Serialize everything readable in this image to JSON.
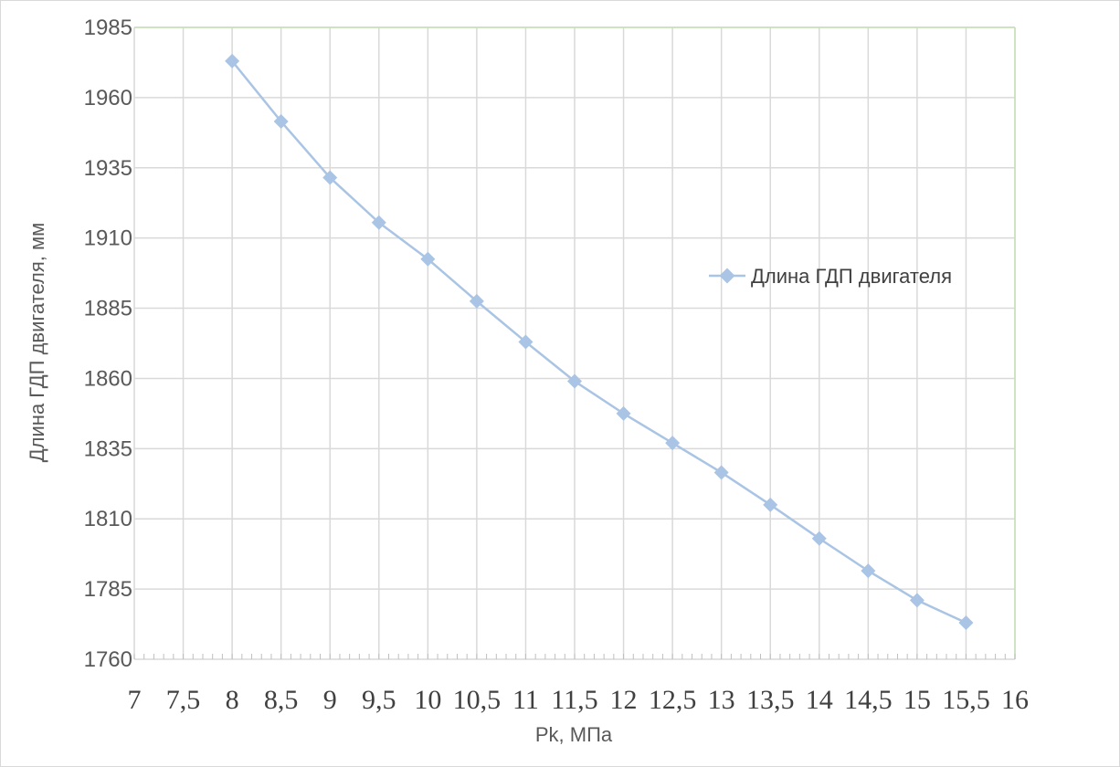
{
  "chart_data": {
    "type": "line",
    "title": "",
    "xlabel": "Pk, МПа",
    "ylabel": "Длина ГДП двигателя, мм",
    "xlim": [
      7,
      16
    ],
    "ylim": [
      1760,
      1985
    ],
    "x_ticks": [
      "7",
      "7,5",
      "8",
      "8,5",
      "9",
      "9,5",
      "10",
      "10,5",
      "11",
      "11,5",
      "12",
      "12,5",
      "13",
      "13,5",
      "14",
      "14,5",
      "15",
      "15,5",
      "16"
    ],
    "y_ticks": [
      "1760",
      "1785",
      "1810",
      "1835",
      "1860",
      "1885",
      "1910",
      "1935",
      "1960",
      "1985"
    ],
    "grid": true,
    "legend_position": "right",
    "series": [
      {
        "name": "Длина ГДП двигателя",
        "color": "#a9c4e4",
        "marker": "diamond",
        "x": [
          8,
          8.5,
          9,
          9.5,
          10,
          10.5,
          11,
          11.5,
          12,
          12.5,
          13,
          13.5,
          14,
          14.5,
          15,
          15.5
        ],
        "values": [
          1973,
          1951.5,
          1931.5,
          1915.5,
          1902.5,
          1887.5,
          1873,
          1859,
          1847.5,
          1837,
          1826.5,
          1815,
          1803,
          1791.5,
          1781,
          1773
        ]
      }
    ]
  }
}
